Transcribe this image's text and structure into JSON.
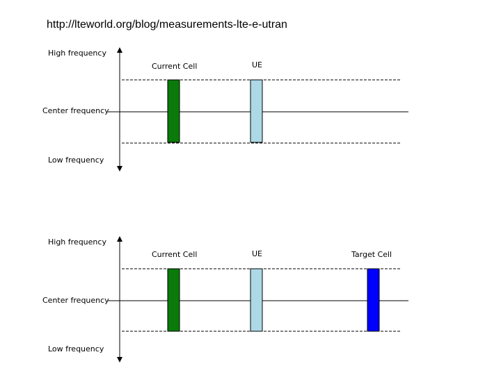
{
  "title": "http://lteworld.org/blog/measurements-lte-e-utran",
  "panels": [
    {
      "high_label": "High frequency",
      "center_label": "Center frequency",
      "low_label": "Low frequency",
      "cells": [
        "Current Cell",
        "UE"
      ]
    },
    {
      "high_label": "High frequency",
      "center_label": "Center frequency",
      "low_label": "Low frequency",
      "cells": [
        "Current Cell",
        "UE",
        "Target Cell"
      ]
    }
  ]
}
